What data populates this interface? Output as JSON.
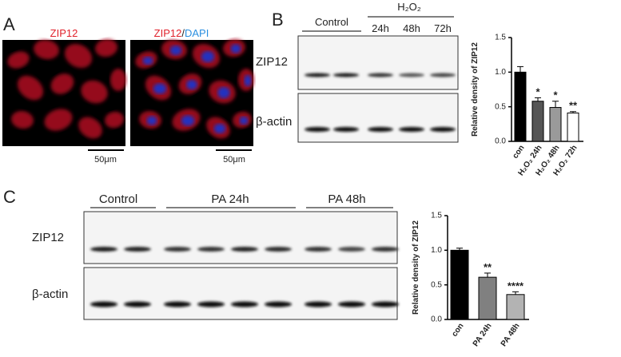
{
  "figure": {
    "a": {
      "label": "A",
      "title_left": "ZIP12",
      "title_right_red": "ZIP12",
      "title_right_sep": "/",
      "title_right_blue": "DAPI",
      "scale_left": "50μm",
      "scale_right": "50μm"
    },
    "b": {
      "label": "B",
      "control": "Control",
      "treatment": "H₂O₂",
      "times": [
        "24h",
        "48h",
        "72h"
      ],
      "blot_top": "ZIP12",
      "blot_bottom": "β-actin"
    },
    "c": {
      "label": "C",
      "control": "Control",
      "group_1": "PA 24h",
      "group_2": "PA 48h",
      "blot_top": "ZIP12",
      "blot_bottom": "β-actin"
    }
  },
  "chart_data": [
    {
      "type": "bar",
      "y_label": "Relative density of ZIP12",
      "categories": [
        "con",
        "H₂O₂ 24h",
        "H₂O₂ 48h",
        "H₂O₂ 72h"
      ],
      "values": [
        1.0,
        0.58,
        0.49,
        0.41
      ],
      "errors": [
        0.08,
        0.05,
        0.09,
        0.02
      ],
      "annotations": [
        null,
        "*",
        "*",
        "**"
      ],
      "colors": [
        "#000000",
        "#555555",
        "#9a9a9a",
        "#ffffff"
      ],
      "ylim": [
        0,
        1.5
      ],
      "yticks": [
        {
          "value": 0,
          "label": "0.0"
        },
        {
          "value": 0.5,
          "label": "0.5"
        },
        {
          "value": 1,
          "label": "1.0"
        },
        {
          "value": 1.5,
          "label": "1.5"
        }
      ]
    },
    {
      "type": "bar",
      "y_label": "Relative density of ZIP12",
      "categories": [
        "con",
        "PA 24h",
        "PA 48h"
      ],
      "values": [
        1.0,
        0.61,
        0.36
      ],
      "errors": [
        0.03,
        0.06,
        0.04
      ],
      "annotations": [
        null,
        "**",
        "****"
      ],
      "colors": [
        "#000000",
        "#808080",
        "#b3b3b3"
      ],
      "ylim": [
        0,
        1.5
      ],
      "yticks": [
        {
          "value": 0,
          "label": "0.0"
        },
        {
          "value": 0.5,
          "label": "0.5"
        },
        {
          "value": 1,
          "label": "1.0"
        },
        {
          "value": 1.5,
          "label": "1.5"
        }
      ]
    }
  ]
}
